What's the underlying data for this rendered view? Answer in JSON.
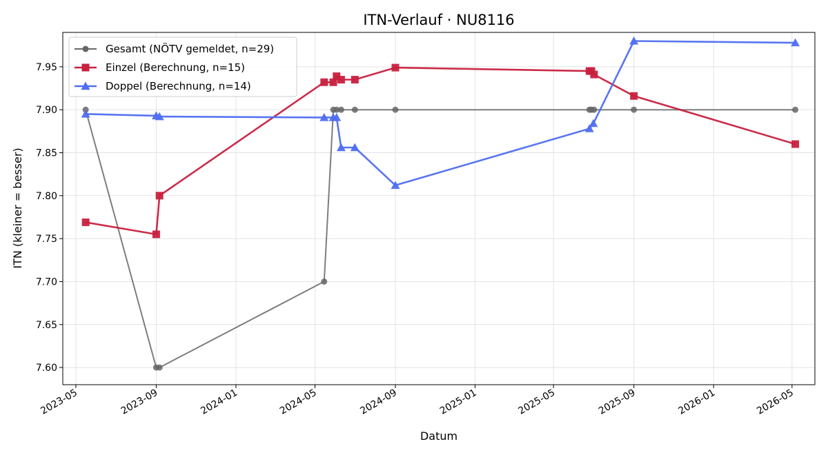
{
  "chart_data": {
    "type": "line",
    "title": "ITN-Verlauf · NU8116",
    "xlabel": "Datum",
    "ylabel": "ITN  (kleiner = besser)",
    "x_range": [
      "2023-04-11",
      "2026-06-05"
    ],
    "ylim": [
      7.58,
      7.99
    ],
    "x_ticks": [
      "2023-05",
      "2023-09",
      "2024-01",
      "2024-05",
      "2024-09",
      "2025-01",
      "2025-05",
      "2025-09",
      "2026-01",
      "2026-05"
    ],
    "y_ticks": [
      "7.60",
      "7.65",
      "7.70",
      "7.75",
      "7.80",
      "7.85",
      "7.90",
      "7.95"
    ],
    "grid": true,
    "legend_position": "top-left",
    "series": [
      {
        "name": "Gesamt (NÖTV gemeldet, n=29)",
        "color": "#666666",
        "marker": "circle",
        "points": [
          [
            "2023-05-16",
            7.9
          ],
          [
            "2023-09-01",
            7.6
          ],
          [
            "2023-09-06",
            7.6
          ],
          [
            "2024-05-15",
            7.7
          ],
          [
            "2024-05-29",
            7.9
          ],
          [
            "2024-06-03",
            7.9
          ],
          [
            "2024-06-10",
            7.9
          ],
          [
            "2024-07-01",
            7.9
          ],
          [
            "2024-09-01",
            7.9
          ],
          [
            "2025-06-25",
            7.9
          ],
          [
            "2025-06-28",
            7.9
          ],
          [
            "2025-07-02",
            7.9
          ],
          [
            "2025-09-01",
            7.9
          ],
          [
            "2026-05-06",
            7.9
          ]
        ]
      },
      {
        "name": "Einzel (Berechnung, n=15)",
        "color": "#c8203f",
        "marker": "square",
        "points": [
          [
            "2023-05-16",
            7.769
          ],
          [
            "2023-09-01",
            7.755
          ],
          [
            "2023-09-06",
            7.8
          ],
          [
            "2024-05-15",
            7.932
          ],
          [
            "2024-05-29",
            7.932
          ],
          [
            "2024-06-03",
            7.939
          ],
          [
            "2024-06-10",
            7.935
          ],
          [
            "2024-07-01",
            7.935
          ],
          [
            "2024-09-01",
            7.949
          ],
          [
            "2025-06-25",
            7.945
          ],
          [
            "2025-06-28",
            7.945
          ],
          [
            "2025-07-02",
            7.941
          ],
          [
            "2025-09-01",
            7.916
          ],
          [
            "2026-05-06",
            7.86
          ]
        ]
      },
      {
        "name": "Doppel (Berechnung, n=14)",
        "color": "#4f6ef0",
        "marker": "triangle",
        "points": [
          [
            "2023-05-16",
            7.895
          ],
          [
            "2023-09-01",
            7.893
          ],
          [
            "2023-09-06",
            7.892
          ],
          [
            "2024-05-15",
            7.891
          ],
          [
            "2024-05-29",
            7.891
          ],
          [
            "2024-06-03",
            7.891
          ],
          [
            "2024-06-10",
            7.856
          ],
          [
            "2024-07-01",
            7.856
          ],
          [
            "2024-09-01",
            7.812
          ],
          [
            "2025-06-25",
            7.878
          ],
          [
            "2025-07-01",
            7.884
          ],
          [
            "2025-09-01",
            7.98
          ],
          [
            "2026-05-06",
            7.978
          ]
        ]
      }
    ]
  }
}
